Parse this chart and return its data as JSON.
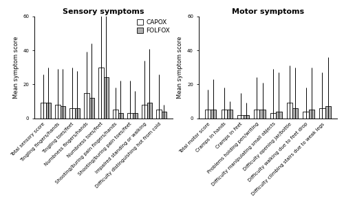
{
  "sensory_categories": [
    "Total sensory score",
    "Tingling fingers/hands",
    "Tingling toes/feet",
    "Numbness fingers/hands",
    "Numbness toes/feet",
    "Shooting/buring pain fingers/hands",
    "Shooting/buring pain toes/feet",
    "Impaired standing or walking",
    "Difficulty distinguishing hot from cold"
  ],
  "sensory_capox_mean": [
    9,
    8,
    6,
    15,
    30,
    5,
    3,
    8,
    5
  ],
  "sensory_capox_sd": [
    17,
    21,
    24,
    24,
    37,
    13,
    19,
    26,
    21
  ],
  "sensory_folfox_mean": [
    9,
    7,
    6,
    12,
    24,
    3,
    3,
    9,
    4
  ],
  "sensory_folfox_sd": [
    21,
    22,
    22,
    32,
    52,
    19,
    13,
    32,
    4
  ],
  "motor_categories": [
    "Total motor score",
    "Cramps in hands",
    "Cramps in feet",
    "Problems holding pen/writing",
    "Difficulty manipulating small objects",
    "Difficulty opening jar/bottle",
    "Difficulty walking due to feet drop",
    "Difficulty climbing stairs due to weak legs"
  ],
  "motor_capox_mean": [
    5,
    5,
    2,
    5,
    3,
    9,
    4,
    6
  ],
  "motor_capox_sd": [
    12,
    13,
    13,
    19,
    26,
    22,
    14,
    21
  ],
  "motor_folfox_mean": [
    5,
    5,
    2,
    5,
    4,
    6,
    5,
    7
  ],
  "motor_folfox_sd": [
    18,
    5,
    7,
    16,
    23,
    24,
    25,
    29
  ],
  "ylim": [
    0,
    60
  ],
  "yticks": [
    0,
    20,
    40,
    60
  ],
  "ylabel": "Mean symptom score",
  "title_sensory": "Sensory symptoms",
  "title_motor": "Motor symptoms",
  "bar_width": 0.35,
  "capox_color": "#ffffff",
  "folfox_color": "#b0b0b0",
  "edge_color": "#000000",
  "legend_labels": [
    "CAPOX",
    "FOLFOX"
  ],
  "title_fontsize": 8,
  "label_fontsize": 6,
  "tick_fontsize": 5,
  "legend_fontsize": 6.5
}
